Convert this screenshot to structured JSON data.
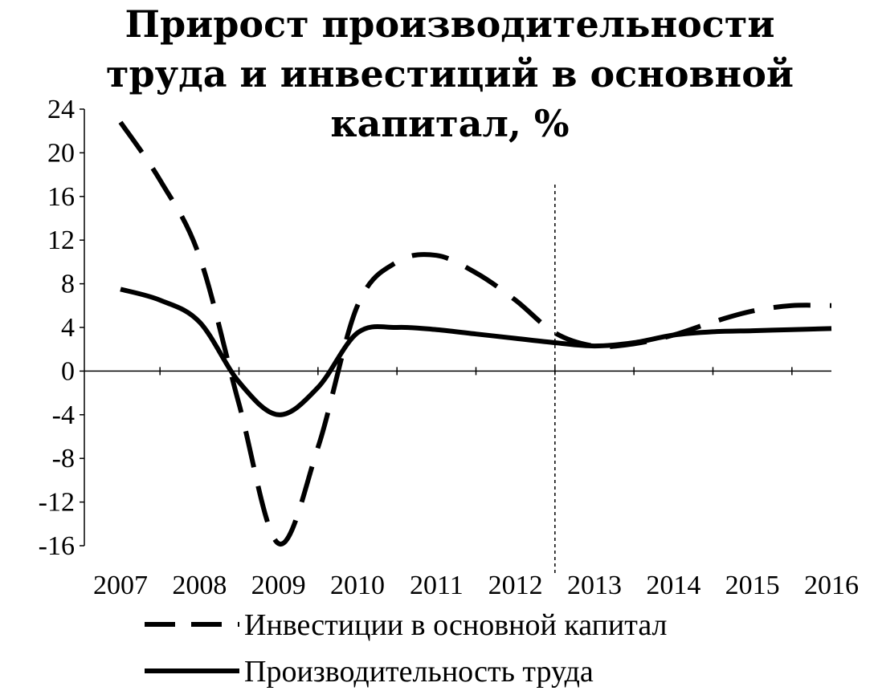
{
  "chart_data": {
    "type": "line",
    "title_lines": [
      "Прирост производительности",
      "труда и инвестиций в основной",
      "капитал, %"
    ],
    "xlabel": "",
    "ylabel": "",
    "categories": [
      "2007",
      "2008",
      "2009",
      "2010",
      "2011",
      "2012",
      "2013",
      "2014",
      "2015",
      "2016"
    ],
    "y_ticks": [
      "24",
      "20",
      "16",
      "12",
      "8",
      "4",
      "0",
      "-4",
      "-8",
      "-12",
      "-16"
    ],
    "ylim": [
      -16,
      24
    ],
    "grid": false,
    "forecast_divider_between": [
      "2012",
      "2013"
    ],
    "legend_position": "bottom",
    "series": [
      {
        "name": "Инвестиции в основной капитал",
        "style": "dashed",
        "x": [
          2007.0,
          2007.5,
          2008.0,
          2008.5,
          2009.0,
          2009.5,
          2010.0,
          2010.5,
          2011.0,
          2011.5,
          2012.0,
          2012.5,
          2013.0,
          2013.5,
          2014.0,
          2014.5,
          2015.0,
          2015.5,
          2016.0
        ],
        "values": [
          22.8,
          17.5,
          10.5,
          -3.0,
          -15.8,
          -7.0,
          6.0,
          10.0,
          10.6,
          9.0,
          6.5,
          3.5,
          2.3,
          2.5,
          3.3,
          4.5,
          5.5,
          6.0,
          6.0
        ]
      },
      {
        "name": "Производительность труда",
        "style": "solid",
        "x": [
          2007.0,
          2007.5,
          2008.0,
          2008.5,
          2009.0,
          2009.5,
          2010.0,
          2010.5,
          2011.0,
          2011.5,
          2012.0,
          2012.5,
          2013.0,
          2013.5,
          2014.0,
          2014.5,
          2015.0,
          2015.5,
          2016.0
        ],
        "values": [
          7.5,
          6.5,
          4.5,
          -1.0,
          -4.0,
          -1.5,
          3.5,
          4.0,
          3.8,
          3.4,
          3.0,
          2.6,
          2.3,
          2.6,
          3.3,
          3.6,
          3.7,
          3.8,
          3.9
        ]
      }
    ]
  }
}
